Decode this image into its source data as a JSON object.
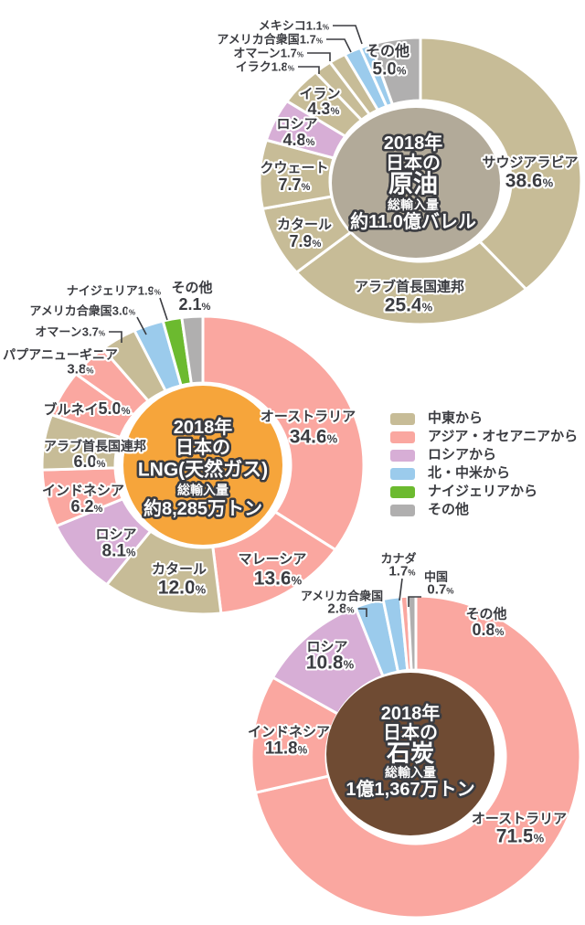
{
  "colors": {
    "groups": {
      "中東から": "#C7BC97",
      "アジア・オセアニアから": "#FAA7A0",
      "ロシアから": "#D7AED6",
      "北・中米から": "#9BCBEC",
      "ナイジェリアから": "#6CBA2F",
      "その他": "#B0AFAF"
    },
    "label_text": "#3B3C41",
    "oil_center": "#B2AA99",
    "oil_watermark": "#C6BEAE",
    "lng_center": "#F6A53B",
    "lng_watermark": "#F8BB62",
    "coal_center": "#6F4B33",
    "coal_watermark": "#7E5942"
  },
  "legend": {
    "items": [
      "中東から",
      "アジア・オセアニアから",
      "ロシアから",
      "北・中米から",
      "ナイジェリアから",
      "その他"
    ]
  },
  "chart_data": [
    {
      "id": "oil",
      "type": "donut",
      "title_lines": [
        "2018年",
        "日本の",
        "原油"
      ],
      "total_caption": "総輸入量",
      "total_value": "約11.0億バレル",
      "unit": "%",
      "slices": [
        {
          "name": "サウジアラビア",
          "pct": 38.6,
          "group": "中東から"
        },
        {
          "name": "アラブ首長国連邦",
          "pct": 25.4,
          "group": "中東から"
        },
        {
          "name": "カタール",
          "pct": 7.9,
          "group": "中東から"
        },
        {
          "name": "クウェート",
          "pct": 7.7,
          "group": "中東から"
        },
        {
          "name": "ロシア",
          "pct": 4.8,
          "group": "ロシアから"
        },
        {
          "name": "イラン",
          "pct": 4.3,
          "group": "中東から"
        },
        {
          "name": "イラク",
          "pct": 1.8,
          "group": "中東から"
        },
        {
          "name": "オマーン",
          "pct": 1.7,
          "group": "中東から"
        },
        {
          "name": "アメリカ合衆国",
          "pct": 1.7,
          "group": "北・中米から"
        },
        {
          "name": "メキシコ",
          "pct": 1.1,
          "group": "北・中米から"
        },
        {
          "name": "その他",
          "pct": 5.0,
          "group": "その他"
        }
      ]
    },
    {
      "id": "lng",
      "type": "donut",
      "title_lines": [
        "2018年",
        "日本の",
        "LNG(天然ガス)"
      ],
      "total_caption": "総輸入量",
      "total_value": "約8,285万トン",
      "unit": "%",
      "slices": [
        {
          "name": "オーストラリア",
          "pct": 34.6,
          "group": "アジア・オセアニアから"
        },
        {
          "name": "マレーシア",
          "pct": 13.6,
          "group": "アジア・オセアニアから"
        },
        {
          "name": "カタール",
          "pct": 12.0,
          "group": "中東から"
        },
        {
          "name": "ロシア",
          "pct": 8.1,
          "group": "ロシアから"
        },
        {
          "name": "インドネシア",
          "pct": 6.2,
          "group": "アジア・オセアニアから"
        },
        {
          "name": "アラブ首長国連邦",
          "pct": 6.0,
          "group": "中東から"
        },
        {
          "name": "ブルネイ",
          "pct": 5.0,
          "group": "アジア・オセアニアから"
        },
        {
          "name": "パプアニューギニア",
          "pct": 3.8,
          "group": "アジア・オセアニアから"
        },
        {
          "name": "オマーン",
          "pct": 3.7,
          "group": "中東から"
        },
        {
          "name": "アメリカ合衆国",
          "pct": 3.0,
          "group": "北・中米から"
        },
        {
          "name": "ナイジェリア",
          "pct": 1.9,
          "group": "ナイジェリアから"
        },
        {
          "name": "その他",
          "pct": 2.1,
          "group": "その他"
        }
      ]
    },
    {
      "id": "coal",
      "type": "donut",
      "title_lines": [
        "2018年",
        "日本の",
        "石炭"
      ],
      "total_caption": "総輸入量",
      "total_value": "1億1,367万トン",
      "unit": "%",
      "slices": [
        {
          "name": "オーストラリア",
          "pct": 71.5,
          "group": "アジア・オセアニアから"
        },
        {
          "name": "インドネシア",
          "pct": 11.8,
          "group": "アジア・オセアニアから"
        },
        {
          "name": "ロシア",
          "pct": 10.8,
          "group": "ロシアから"
        },
        {
          "name": "アメリカ合衆国",
          "pct": 2.8,
          "group": "北・中米から"
        },
        {
          "name": "カナダ",
          "pct": 1.7,
          "group": "北・中米から"
        },
        {
          "name": "中国",
          "pct": 0.7,
          "group": "アジア・オセアニアから"
        },
        {
          "name": "その他",
          "pct": 0.8,
          "group": "その他"
        }
      ]
    }
  ]
}
